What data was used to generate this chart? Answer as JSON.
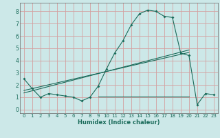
{
  "xlabel": "Humidex (Indice chaleur)",
  "xlim": [
    -0.5,
    23.5
  ],
  "ylim": [
    -0.3,
    8.7
  ],
  "xticks": [
    0,
    1,
    2,
    3,
    4,
    5,
    6,
    7,
    8,
    9,
    10,
    11,
    12,
    13,
    14,
    15,
    16,
    17,
    18,
    19,
    20,
    21,
    22,
    23
  ],
  "yticks": [
    0,
    1,
    2,
    3,
    4,
    5,
    6,
    7,
    8
  ],
  "bg_color": "#cce8e8",
  "grid_color": "#d4a0a0",
  "line_color": "#1a6b5a",
  "data_x": [
    0,
    1,
    2,
    3,
    4,
    5,
    6,
    7,
    8,
    9,
    10,
    11,
    12,
    13,
    14,
    15,
    16,
    17,
    18,
    19,
    20,
    21,
    22,
    23
  ],
  "data_y": [
    2.5,
    1.7,
    1.0,
    1.3,
    1.2,
    1.1,
    1.0,
    0.7,
    1.0,
    1.9,
    3.3,
    4.6,
    5.6,
    6.9,
    7.8,
    8.1,
    8.0,
    7.6,
    7.5,
    4.6,
    4.4,
    0.4,
    1.3,
    1.2
  ],
  "trend1_x": [
    0,
    20
  ],
  "trend1_y": [
    1.55,
    4.65
  ],
  "trend2_x": [
    0,
    20
  ],
  "trend2_y": [
    1.35,
    4.85
  ],
  "flat_line_x": [
    9,
    20
  ],
  "flat_line_y": [
    1.05,
    1.05
  ]
}
